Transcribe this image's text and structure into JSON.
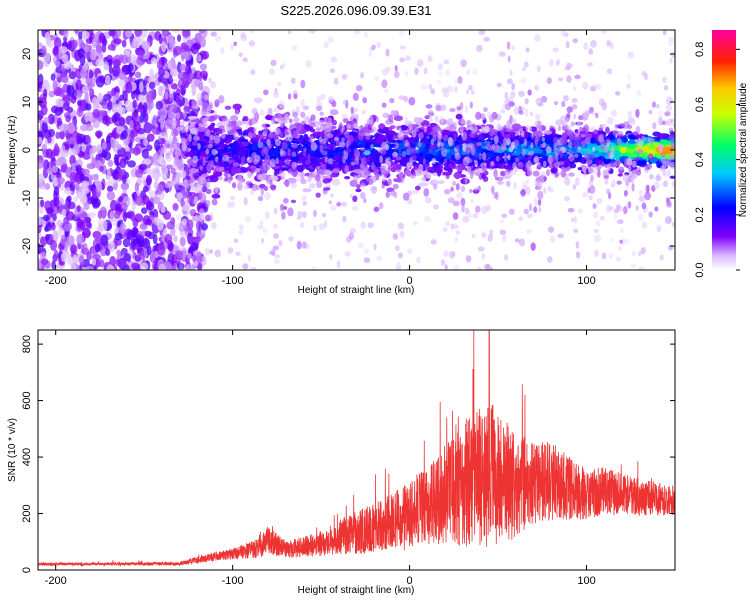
{
  "title": "S225.2026.096.09.39.E31",
  "chart_data": [
    {
      "type": "heatmap",
      "title": "S225.2026.096.09.39.E31",
      "xlabel": "Height of straight line (km)",
      "ylabel": "Frequency (Hz)",
      "xlim": [
        -210,
        150
      ],
      "ylim": [
        -25,
        25
      ],
      "xticks": [
        -200,
        -100,
        0,
        100
      ],
      "yticks": [
        -20,
        -10,
        0,
        10,
        20
      ],
      "x_tick_labels": [
        "-200",
        "-100",
        "0",
        "100"
      ],
      "y_tick_labels": [
        "-20",
        "-10",
        "0",
        "10",
        "20"
      ],
      "colorbar": {
        "label": "Normalized spectral amplitude",
        "range": [
          0,
          0.87
        ],
        "ticks": [
          0,
          0.2,
          0.4,
          0.6,
          0.8
        ],
        "tick_labels": [
          "0.0",
          "0.2",
          "0.4",
          "0.6",
          "0.8"
        ]
      },
      "features": {
        "diffuse_noise_region_km": [
          -210,
          -125
        ],
        "signal_band_start_km": -125,
        "signal_center_hz": 0,
        "signal_halfwidth_hz_at_start": 5,
        "signal_halfwidth_hz_at_end": 2,
        "peak_amplitude_region_km": [
          100,
          150
        ],
        "peak_amplitude": 0.87
      }
    },
    {
      "type": "line",
      "xlabel": "Height of straight line (km)",
      "ylabel": "SNR (10 * v/v)",
      "xlim": [
        -210,
        150
      ],
      "ylim": [
        0,
        850
      ],
      "xticks": [
        -200,
        -100,
        0,
        100
      ],
      "yticks": [
        0,
        200,
        400,
        600,
        800
      ],
      "x_tick_labels": [
        "-200",
        "-100",
        "0",
        "100"
      ],
      "y_tick_labels": [
        "0",
        "200",
        "400",
        "600",
        "800"
      ],
      "series": [
        {
          "name": "SNR",
          "color": "#ee3333",
          "envelope_x": [
            -210,
            -130,
            -120,
            -100,
            -85,
            -80,
            -70,
            -50,
            -40,
            -20,
            -10,
            0,
            10,
            20,
            30,
            40,
            45,
            50,
            60,
            70,
            80,
            90,
            100,
            110,
            120,
            130,
            140,
            150
          ],
          "envelope_mean": [
            20,
            22,
            35,
            55,
            75,
            100,
            70,
            90,
            110,
            140,
            160,
            180,
            210,
            250,
            280,
            300,
            310,
            300,
            280,
            290,
            300,
            280,
            260,
            270,
            260,
            250,
            245,
            240
          ],
          "envelope_spread": [
            10,
            12,
            25,
            40,
            70,
            100,
            60,
            90,
            120,
            180,
            200,
            250,
            280,
            350,
            450,
            500,
            530,
            480,
            380,
            300,
            280,
            230,
            180,
            170,
            150,
            130,
            120,
            110
          ],
          "peak": {
            "x": 45,
            "y": 850
          }
        }
      ]
    }
  ],
  "colors": {
    "snr_line": "#ee3333",
    "axis": "#000000"
  }
}
